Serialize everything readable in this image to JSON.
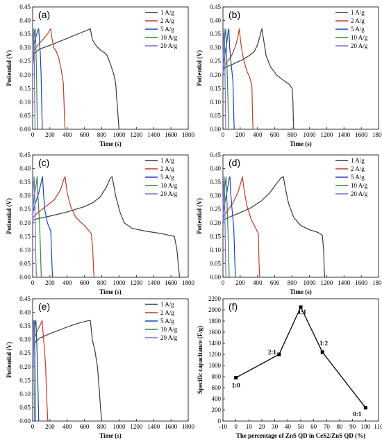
{
  "chart_data": [
    {
      "panel_label": "(a)",
      "type": "line",
      "xlabel": "Time (s)",
      "ylabel": "Potiential (V)",
      "xlim": [
        0,
        1800
      ],
      "ylim": [
        0,
        0.45
      ],
      "xticks": [
        0,
        200,
        400,
        600,
        800,
        1000,
        1200,
        1400,
        1600,
        1800
      ],
      "yticks": [
        0.0,
        0.05,
        0.1,
        0.15,
        0.2,
        0.25,
        0.3,
        0.35,
        0.4,
        0.45
      ],
      "legend_position": "top-right",
      "series": [
        {
          "name": "1 A/g",
          "color": "#3a3a3a",
          "x": [
            0,
            5,
            20,
            80,
            150,
            250,
            350,
            450,
            550,
            650,
            668,
            690,
            740,
            790,
            830,
            860,
            900,
            940,
            960,
            985,
            1000
          ],
          "y": [
            0.2,
            0.25,
            0.28,
            0.295,
            0.303,
            0.315,
            0.328,
            0.341,
            0.354,
            0.367,
            0.37,
            0.33,
            0.305,
            0.29,
            0.282,
            0.272,
            0.24,
            0.2,
            0.17,
            0.06,
            0.0
          ]
        },
        {
          "name": "2 A/g",
          "color": "#c0392b",
          "x": [
            0,
            3,
            15,
            60,
            120,
            180,
            210,
            220,
            245,
            275,
            300,
            330,
            355,
            368,
            375
          ],
          "y": [
            0.2,
            0.26,
            0.29,
            0.31,
            0.33,
            0.355,
            0.37,
            0.34,
            0.3,
            0.285,
            0.265,
            0.22,
            0.17,
            0.05,
            0.0
          ]
        },
        {
          "name": "5 A/g",
          "color": "#1f3fbf",
          "x": [
            0,
            2,
            8,
            30,
            60,
            70,
            78,
            88,
            98,
            108,
            112
          ],
          "y": [
            0.2,
            0.27,
            0.3,
            0.33,
            0.365,
            0.37,
            0.33,
            0.28,
            0.2,
            0.05,
            0.0
          ]
        },
        {
          "name": "10 A/g",
          "color": "#2e8b2e",
          "x": [
            0,
            2,
            10,
            25,
            30,
            36,
            44,
            52,
            55
          ],
          "y": [
            0.2,
            0.28,
            0.32,
            0.36,
            0.37,
            0.32,
            0.22,
            0.05,
            0.0
          ]
        },
        {
          "name": "20 A/g",
          "color": "#7a6cd8",
          "x": [
            0,
            2,
            8,
            14,
            18,
            24,
            28
          ],
          "y": [
            0.2,
            0.3,
            0.35,
            0.37,
            0.3,
            0.1,
            0.0
          ]
        }
      ]
    },
    {
      "panel_label": "(b)",
      "type": "line",
      "xlabel": "Time (s)",
      "ylabel": "Potiential (V)",
      "xlim": [
        0,
        1800
      ],
      "ylim": [
        0,
        0.45
      ],
      "xticks": [
        0,
        200,
        400,
        600,
        800,
        1000,
        1200,
        1400,
        1600,
        1800
      ],
      "yticks": [
        0.0,
        0.05,
        0.1,
        0.15,
        0.2,
        0.25,
        0.3,
        0.35,
        0.4,
        0.45
      ],
      "legend_position": "top-right",
      "series": [
        {
          "name": "1 A/g",
          "color": "#3a3a3a",
          "x": [
            0,
            5,
            40,
            120,
            220,
            300,
            360,
            400,
            430,
            450,
            470,
            500,
            550,
            620,
            700,
            770,
            800,
            810,
            815,
            820
          ],
          "y": [
            0.2,
            0.22,
            0.23,
            0.24,
            0.255,
            0.27,
            0.285,
            0.31,
            0.345,
            0.37,
            0.33,
            0.27,
            0.23,
            0.2,
            0.18,
            0.165,
            0.15,
            0.1,
            0.03,
            0.0
          ]
        },
        {
          "name": "2 A/g",
          "color": "#c0392b",
          "x": [
            0,
            5,
            40,
            100,
            150,
            175,
            190,
            205,
            230,
            270,
            310,
            335,
            342,
            348
          ],
          "y": [
            0.2,
            0.225,
            0.245,
            0.27,
            0.31,
            0.345,
            0.37,
            0.32,
            0.27,
            0.22,
            0.19,
            0.16,
            0.05,
            0.0
          ]
        },
        {
          "name": "5 A/g",
          "color": "#1f3fbf",
          "x": [
            0,
            4,
            20,
            45,
            60,
            68,
            78,
            95,
            115,
            125,
            130
          ],
          "y": [
            0.2,
            0.24,
            0.27,
            0.32,
            0.36,
            0.37,
            0.3,
            0.24,
            0.18,
            0.05,
            0.0
          ]
        },
        {
          "name": "10 A/g",
          "color": "#2e8b2e",
          "x": [
            0,
            3,
            12,
            25,
            33,
            38,
            45,
            55,
            62,
            65
          ],
          "y": [
            0.2,
            0.26,
            0.3,
            0.35,
            0.37,
            0.32,
            0.25,
            0.15,
            0.05,
            0.0
          ]
        },
        {
          "name": "20 A/g",
          "color": "#7a6cd8",
          "x": [
            0,
            2,
            8,
            15,
            20,
            26,
            31,
            33
          ],
          "y": [
            0.2,
            0.28,
            0.33,
            0.37,
            0.3,
            0.15,
            0.03,
            0.0
          ]
        }
      ]
    },
    {
      "panel_label": "(c)",
      "type": "line",
      "xlabel": "Time (s)",
      "ylabel": "Potiential (V)",
      "xlim": [
        0,
        1800
      ],
      "ylim": [
        0,
        0.45
      ],
      "xticks": [
        0,
        200,
        400,
        600,
        800,
        1000,
        1200,
        1400,
        1600,
        1800
      ],
      "yticks": [
        0.0,
        0.05,
        0.1,
        0.15,
        0.2,
        0.25,
        0.3,
        0.35,
        0.4,
        0.45
      ],
      "legend_position": "top-right",
      "series": [
        {
          "name": "1 A/g",
          "color": "#3a3a3a",
          "x": [
            0,
            5,
            50,
            200,
            400,
            600,
            700,
            780,
            850,
            900,
            920,
            960,
            1010,
            1060,
            1150,
            1300,
            1500,
            1640,
            1670,
            1690,
            1700
          ],
          "y": [
            0.2,
            0.21,
            0.215,
            0.225,
            0.24,
            0.26,
            0.275,
            0.295,
            0.33,
            0.365,
            0.37,
            0.3,
            0.24,
            0.2,
            0.18,
            0.17,
            0.16,
            0.15,
            0.1,
            0.03,
            0.0
          ]
        },
        {
          "name": "2 A/g",
          "color": "#c0392b",
          "x": [
            0,
            5,
            50,
            150,
            250,
            320,
            360,
            375,
            400,
            440,
            500,
            600,
            680,
            695,
            705,
            710
          ],
          "y": [
            0.2,
            0.22,
            0.235,
            0.26,
            0.285,
            0.32,
            0.36,
            0.37,
            0.31,
            0.26,
            0.22,
            0.19,
            0.16,
            0.1,
            0.03,
            0.0
          ]
        },
        {
          "name": "5 A/g",
          "color": "#1f3fbf",
          "x": [
            0,
            5,
            30,
            70,
            100,
            115,
            125,
            140,
            170,
            210,
            222,
            230
          ],
          "y": [
            0.2,
            0.24,
            0.27,
            0.31,
            0.35,
            0.37,
            0.31,
            0.25,
            0.2,
            0.17,
            0.06,
            0.0
          ]
        },
        {
          "name": "10 A/g",
          "color": "#2e8b2e",
          "x": [
            0,
            3,
            15,
            40,
            52,
            58,
            68,
            80,
            93,
            100
          ],
          "y": [
            0.2,
            0.25,
            0.29,
            0.34,
            0.37,
            0.32,
            0.26,
            0.2,
            0.07,
            0.0
          ]
        },
        {
          "name": "20 A/g",
          "color": "#7a6cd8",
          "x": [
            0,
            2,
            8,
            18,
            24,
            30,
            38,
            44
          ],
          "y": [
            0.2,
            0.28,
            0.33,
            0.37,
            0.3,
            0.2,
            0.06,
            0.0
          ]
        }
      ]
    },
    {
      "panel_label": "(d)",
      "type": "line",
      "xlabel": "Time (s)",
      "ylabel": "Potiential (V)",
      "xlim": [
        0,
        1800
      ],
      "ylim": [
        0,
        0.45
      ],
      "xticks": [
        0,
        200,
        400,
        600,
        800,
        1000,
        1200,
        1400,
        1600,
        1800
      ],
      "yticks": [
        0.0,
        0.05,
        0.1,
        0.15,
        0.2,
        0.25,
        0.3,
        0.35,
        0.4,
        0.45
      ],
      "legend_position": "top-right",
      "series": [
        {
          "name": "1 A/g",
          "color": "#3a3a3a",
          "x": [
            0,
            5,
            60,
            180,
            320,
            440,
            540,
            620,
            670,
            700,
            720,
            760,
            820,
            900,
            1000,
            1100,
            1150,
            1165,
            1172,
            1178
          ],
          "y": [
            0.2,
            0.21,
            0.22,
            0.235,
            0.255,
            0.28,
            0.31,
            0.345,
            0.365,
            0.37,
            0.33,
            0.27,
            0.22,
            0.19,
            0.175,
            0.165,
            0.155,
            0.1,
            0.03,
            0.0
          ]
        },
        {
          "name": "2 A/g",
          "color": "#c0392b",
          "x": [
            0,
            5,
            40,
            110,
            170,
            210,
            225,
            245,
            280,
            330,
            380,
            410,
            418,
            425
          ],
          "y": [
            0.2,
            0.22,
            0.24,
            0.27,
            0.31,
            0.35,
            0.37,
            0.32,
            0.26,
            0.21,
            0.18,
            0.16,
            0.05,
            0.0
          ]
        },
        {
          "name": "5 A/g",
          "color": "#1f3fbf",
          "x": [
            0,
            4,
            20,
            50,
            70,
            80,
            90,
            105,
            125,
            138,
            145
          ],
          "y": [
            0.2,
            0.24,
            0.27,
            0.32,
            0.36,
            0.37,
            0.31,
            0.25,
            0.18,
            0.05,
            0.0
          ]
        },
        {
          "name": "10 A/g",
          "color": "#2e8b2e",
          "x": [
            0,
            3,
            12,
            28,
            36,
            42,
            50,
            60,
            68,
            72
          ],
          "y": [
            0.2,
            0.26,
            0.3,
            0.35,
            0.37,
            0.32,
            0.25,
            0.15,
            0.05,
            0.0
          ]
        },
        {
          "name": "20 A/g",
          "color": "#7a6cd8",
          "x": [
            0,
            2,
            8,
            15,
            20,
            26,
            32,
            35
          ],
          "y": [
            0.2,
            0.28,
            0.33,
            0.37,
            0.3,
            0.15,
            0.03,
            0.0
          ]
        }
      ]
    },
    {
      "panel_label": "(e)",
      "type": "line",
      "xlabel": "Time (s)",
      "ylabel": "Potiential (V)",
      "xlim": [
        0,
        1800
      ],
      "ylim": [
        0,
        0.45
      ],
      "xticks": [
        0,
        200,
        400,
        600,
        800,
        1000,
        1200,
        1400,
        1600,
        1800
      ],
      "yticks": [
        0.0,
        0.05,
        0.1,
        0.15,
        0.2,
        0.25,
        0.3,
        0.35,
        0.4,
        0.45
      ],
      "legend_position": "top-right",
      "series": [
        {
          "name": "1 A/g",
          "color": "#3a3a3a",
          "x": [
            0,
            5,
            30,
            80,
            150,
            250,
            350,
            450,
            550,
            650,
            668,
            690,
            720,
            750,
            770,
            785,
            793,
            800
          ],
          "y": [
            0.2,
            0.26,
            0.29,
            0.305,
            0.315,
            0.328,
            0.34,
            0.352,
            0.362,
            0.37,
            0.37,
            0.3,
            0.26,
            0.2,
            0.12,
            0.05,
            0.02,
            0.0
          ]
        },
        {
          "name": "2 A/g",
          "color": "#c0392b",
          "x": [
            0,
            3,
            15,
            50,
            90,
            110,
            120,
            135,
            150,
            165,
            175
          ],
          "y": [
            0.2,
            0.26,
            0.3,
            0.33,
            0.355,
            0.37,
            0.33,
            0.27,
            0.2,
            0.07,
            0.0
          ]
        },
        {
          "name": "5 A/g",
          "color": "#1f3fbf",
          "x": [
            0,
            2,
            8,
            20,
            32,
            38,
            45,
            55,
            65,
            70
          ],
          "y": [
            0.2,
            0.27,
            0.31,
            0.34,
            0.365,
            0.37,
            0.31,
            0.22,
            0.07,
            0.0
          ]
        },
        {
          "name": "10 A/g",
          "color": "#2e8b2e",
          "x": [
            0,
            2,
            8,
            15,
            19,
            24,
            30,
            35
          ],
          "y": [
            0.2,
            0.28,
            0.33,
            0.36,
            0.37,
            0.3,
            0.15,
            0.0
          ]
        },
        {
          "name": "20 A/g",
          "color": "#7a6cd8",
          "x": [
            0,
            2,
            6,
            10,
            14,
            18,
            20
          ],
          "y": [
            0.2,
            0.3,
            0.35,
            0.37,
            0.3,
            0.1,
            0.0
          ]
        }
      ]
    },
    {
      "panel_label": "(f)",
      "type": "scatter",
      "xlabel": "The percentage of ZnS QD in CeS2/ZnS QD (%)",
      "ylabel": "Specific capacitance (F/g)",
      "xlim": [
        -10,
        110
      ],
      "ylim": [
        0,
        2200
      ],
      "xticks": [
        -10,
        0,
        10,
        20,
        30,
        40,
        50,
        60,
        70,
        80,
        90,
        100,
        110
      ],
      "yticks": [
        0,
        200,
        400,
        600,
        800,
        1000,
        1200,
        1400,
        1600,
        1800,
        2000,
        2200
      ],
      "series": [
        {
          "color": "#000000",
          "x": [
            0,
            33.3,
            50,
            66.7,
            100
          ],
          "y": [
            780,
            1200,
            2050,
            1240,
            240
          ]
        }
      ],
      "point_labels": [
        "1:0",
        "2:1",
        "1:1",
        "1:2",
        "0:1"
      ]
    }
  ]
}
